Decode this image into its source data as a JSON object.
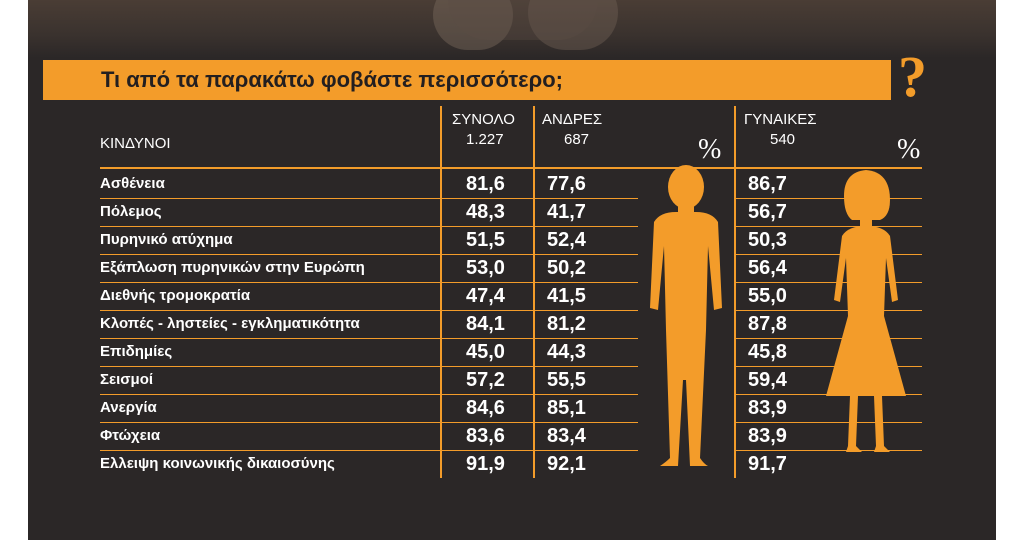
{
  "title": "Τι από τα παρακάτω φοβάστε περισσότερο;",
  "question_mark": "?",
  "header": {
    "category_label": "ΚΙΝΔΥΝΟΙ",
    "total_label": "ΣΥΝΟΛΟ",
    "total_n": "1.227",
    "men_label": "ΑΝΔΡΕΣ",
    "men_n": "687",
    "women_label": "ΓΥΝΑΙΚΕΣ",
    "women_n": "540",
    "percent_sign": "%"
  },
  "colors": {
    "accent": "#f39c2a",
    "background": "#2b2727",
    "text": "#ffffff"
  },
  "chart_data": {
    "type": "table",
    "columns": [
      "ΣΥΝΟΛΟ",
      "ΑΝΔΡΕΣ",
      "ΓΥΝΑΙΚΕΣ"
    ],
    "rows": [
      {
        "label": "Ασθένεια",
        "total": "81,6",
        "men": "77,6",
        "women": "86,7"
      },
      {
        "label": "Πόλεμος",
        "total": "48,3",
        "men": "41,7",
        "women": "56,7"
      },
      {
        "label": "Πυρηνικό ατύχημα",
        "total": "51,5",
        "men": "52,4",
        "women": "50,3"
      },
      {
        "label": "Εξάπλωση πυρηνικών στην Ευρώπη",
        "total": "53,0",
        "men": "50,2",
        "women": "56,4"
      },
      {
        "label": "Διεθνής τρομοκρατία",
        "total": "47,4",
        "men": "41,5",
        "women": "55,0"
      },
      {
        "label": "Κλοπές - ληστείες - εγκληματικότητα",
        "total": "84,1",
        "men": "81,2",
        "women": "87,8"
      },
      {
        "label": "Επιδημίες",
        "total": "45,0",
        "men": "44,3",
        "women": "45,8"
      },
      {
        "label": "Σεισμοί",
        "total": "57,2",
        "men": "55,5",
        "women": "59,4"
      },
      {
        "label": "Ανεργία",
        "total": "84,6",
        "men": "85,1",
        "women": "83,9"
      },
      {
        "label": "Φτώχεια",
        "total": "83,6",
        "men": "83,4",
        "women": "83,9"
      },
      {
        "label": "Ελλειψη κοινωνικής δικαιοσύνης",
        "total": "91,9",
        "men": "92,1",
        "women": "91,7"
      }
    ]
  }
}
